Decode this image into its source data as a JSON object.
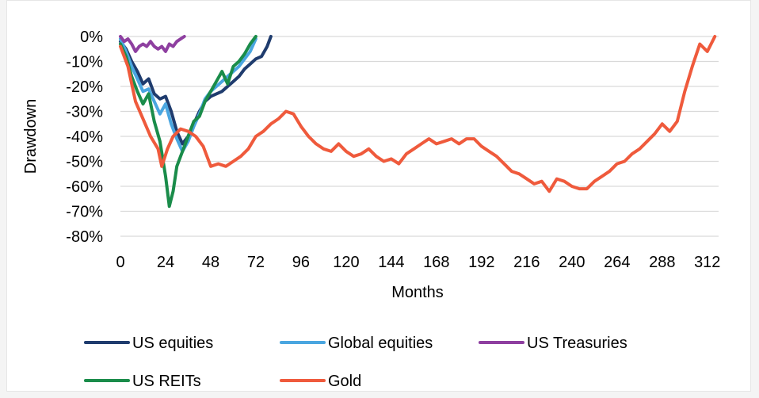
{
  "chart_data": {
    "type": "line",
    "title": "",
    "xlabel": "Months",
    "ylabel": "Drawdown",
    "xlim": [
      0,
      318
    ],
    "ylim": [
      -80,
      0
    ],
    "x_ticks": [
      0,
      24,
      48,
      72,
      96,
      120,
      144,
      168,
      192,
      216,
      240,
      264,
      288,
      312
    ],
    "y_ticks": [
      0,
      -10,
      -20,
      -30,
      -40,
      -50,
      -60,
      -70,
      -80
    ],
    "y_tick_labels": [
      "0%",
      "-10%",
      "-20%",
      "-30%",
      "-40%",
      "-50%",
      "-60%",
      "-70%",
      "-80%"
    ],
    "grid": true,
    "legend_position": "bottom",
    "series": [
      {
        "name": "US equities",
        "color": "#1f3c6e",
        "points": [
          [
            0,
            -2
          ],
          [
            3,
            -5
          ],
          [
            6,
            -10
          ],
          [
            9,
            -14
          ],
          [
            12,
            -19
          ],
          [
            15,
            -17
          ],
          [
            18,
            -23
          ],
          [
            21,
            -25
          ],
          [
            24,
            -24
          ],
          [
            27,
            -30
          ],
          [
            30,
            -38
          ],
          [
            33,
            -43
          ],
          [
            36,
            -40
          ],
          [
            39,
            -35
          ],
          [
            42,
            -30
          ],
          [
            45,
            -26
          ],
          [
            48,
            -24
          ],
          [
            51,
            -23
          ],
          [
            54,
            -22
          ],
          [
            57,
            -20
          ],
          [
            60,
            -18
          ],
          [
            63,
            -16
          ],
          [
            66,
            -13
          ],
          [
            69,
            -11
          ],
          [
            72,
            -9
          ],
          [
            75,
            -8
          ],
          [
            78,
            -4
          ],
          [
            80,
            0
          ]
        ]
      },
      {
        "name": "Global equities",
        "color": "#4aa6e0",
        "points": [
          [
            0,
            -1
          ],
          [
            3,
            -6
          ],
          [
            6,
            -12
          ],
          [
            9,
            -17
          ],
          [
            12,
            -22
          ],
          [
            15,
            -21
          ],
          [
            18,
            -26
          ],
          [
            21,
            -31
          ],
          [
            24,
            -27
          ],
          [
            27,
            -35
          ],
          [
            30,
            -41
          ],
          [
            33,
            -46
          ],
          [
            36,
            -42
          ],
          [
            39,
            -36
          ],
          [
            42,
            -31
          ],
          [
            45,
            -25
          ],
          [
            48,
            -22
          ],
          [
            51,
            -20
          ],
          [
            54,
            -18
          ],
          [
            57,
            -16
          ],
          [
            60,
            -14
          ],
          [
            63,
            -12
          ],
          [
            66,
            -9
          ],
          [
            69,
            -6
          ],
          [
            72,
            -1
          ]
        ]
      },
      {
        "name": "US Treasuries",
        "color": "#8e3fa0",
        "points": [
          [
            0,
            0
          ],
          [
            2,
            -2
          ],
          [
            4,
            -1
          ],
          [
            6,
            -3
          ],
          [
            8,
            -6
          ],
          [
            10,
            -4
          ],
          [
            12,
            -3
          ],
          [
            14,
            -4
          ],
          [
            16,
            -2
          ],
          [
            18,
            -4
          ],
          [
            20,
            -5
          ],
          [
            22,
            -4
          ],
          [
            24,
            -6
          ],
          [
            26,
            -3
          ],
          [
            28,
            -4
          ],
          [
            30,
            -2
          ],
          [
            32,
            -1
          ],
          [
            34,
            0
          ]
        ]
      },
      {
        "name": "US REITs",
        "color": "#1a8c4a",
        "points": [
          [
            0,
            -3
          ],
          [
            3,
            -8
          ],
          [
            6,
            -16
          ],
          [
            9,
            -22
          ],
          [
            12,
            -27
          ],
          [
            15,
            -23
          ],
          [
            18,
            -34
          ],
          [
            21,
            -42
          ],
          [
            24,
            -56
          ],
          [
            26,
            -68
          ],
          [
            28,
            -62
          ],
          [
            30,
            -52
          ],
          [
            33,
            -46
          ],
          [
            36,
            -40
          ],
          [
            39,
            -34
          ],
          [
            42,
            -32
          ],
          [
            45,
            -26
          ],
          [
            48,
            -22
          ],
          [
            51,
            -18
          ],
          [
            54,
            -14
          ],
          [
            57,
            -19
          ],
          [
            60,
            -12
          ],
          [
            63,
            -10
          ],
          [
            66,
            -7
          ],
          [
            69,
            -3
          ],
          [
            72,
            0
          ]
        ]
      },
      {
        "name": "Gold",
        "color": "#ef5a3c",
        "points": [
          [
            0,
            -4
          ],
          [
            4,
            -12
          ],
          [
            8,
            -26
          ],
          [
            12,
            -33
          ],
          [
            16,
            -40
          ],
          [
            20,
            -45
          ],
          [
            22,
            -52
          ],
          [
            25,
            -45
          ],
          [
            28,
            -40
          ],
          [
            32,
            -37
          ],
          [
            36,
            -38
          ],
          [
            40,
            -40
          ],
          [
            44,
            -44
          ],
          [
            48,
            -52
          ],
          [
            52,
            -51
          ],
          [
            56,
            -52
          ],
          [
            60,
            -50
          ],
          [
            64,
            -48
          ],
          [
            68,
            -45
          ],
          [
            72,
            -40
          ],
          [
            76,
            -38
          ],
          [
            80,
            -35
          ],
          [
            84,
            -33
          ],
          [
            88,
            -30
          ],
          [
            92,
            -31
          ],
          [
            96,
            -36
          ],
          [
            100,
            -40
          ],
          [
            104,
            -43
          ],
          [
            108,
            -45
          ],
          [
            112,
            -46
          ],
          [
            116,
            -43
          ],
          [
            120,
            -46
          ],
          [
            124,
            -48
          ],
          [
            128,
            -47
          ],
          [
            132,
            -45
          ],
          [
            136,
            -48
          ],
          [
            140,
            -50
          ],
          [
            144,
            -49
          ],
          [
            148,
            -51
          ],
          [
            152,
            -47
          ],
          [
            156,
            -45
          ],
          [
            160,
            -43
          ],
          [
            164,
            -41
          ],
          [
            168,
            -43
          ],
          [
            172,
            -42
          ],
          [
            176,
            -41
          ],
          [
            180,
            -43
          ],
          [
            184,
            -41
          ],
          [
            188,
            -41
          ],
          [
            192,
            -44
          ],
          [
            196,
            -46
          ],
          [
            200,
            -48
          ],
          [
            204,
            -51
          ],
          [
            208,
            -54
          ],
          [
            212,
            -55
          ],
          [
            216,
            -57
          ],
          [
            220,
            -59
          ],
          [
            224,
            -58
          ],
          [
            228,
            -62
          ],
          [
            232,
            -57
          ],
          [
            236,
            -58
          ],
          [
            240,
            -60
          ],
          [
            244,
            -61
          ],
          [
            248,
            -61
          ],
          [
            252,
            -58
          ],
          [
            256,
            -56
          ],
          [
            260,
            -54
          ],
          [
            264,
            -51
          ],
          [
            268,
            -50
          ],
          [
            272,
            -47
          ],
          [
            276,
            -45
          ],
          [
            280,
            -42
          ],
          [
            284,
            -39
          ],
          [
            288,
            -35
          ],
          [
            292,
            -38
          ],
          [
            296,
            -34
          ],
          [
            300,
            -22
          ],
          [
            304,
            -12
          ],
          [
            308,
            -3
          ],
          [
            312,
            -6
          ],
          [
            316,
            0
          ]
        ]
      }
    ]
  }
}
